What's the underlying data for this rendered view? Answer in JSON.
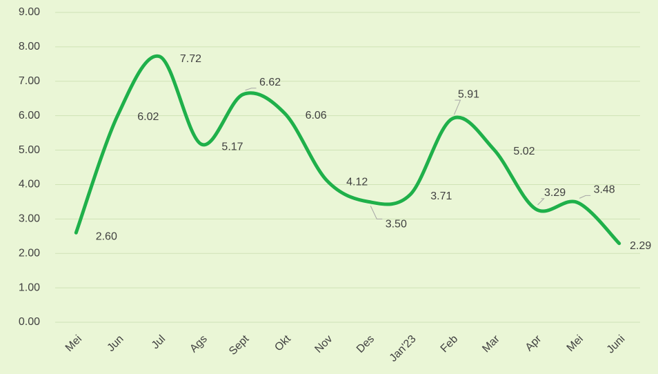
{
  "chart_data": {
    "type": "line",
    "categories": [
      "Mei",
      "Jun",
      "Jul",
      "Ags",
      "Sept",
      "Okt",
      "Nov",
      "Des",
      "Jan'23",
      "Feb",
      "Mar",
      "Apr",
      "Mei",
      "Juni"
    ],
    "values": [
      2.6,
      6.02,
      7.72,
      5.17,
      6.62,
      6.06,
      4.12,
      3.5,
      3.71,
      5.91,
      5.02,
      3.29,
      3.48,
      2.29
    ],
    "value_labels": [
      "2.60",
      "6.02",
      "7.72",
      "5.17",
      "6.62",
      "6.06",
      "4.12",
      "3.50",
      "3.71",
      "5.91",
      "5.02",
      "3.29",
      "3.48",
      "2.29"
    ],
    "color": "#1fb04a",
    "smooth": true,
    "grid": true,
    "ylim": [
      0,
      9
    ],
    "yticks": [
      {
        "value": 0,
        "label": "0.00"
      },
      {
        "value": 1,
        "label": "1.00"
      },
      {
        "value": 2,
        "label": "2.00"
      },
      {
        "value": 3,
        "label": "3.00"
      },
      {
        "value": 4,
        "label": "4.00"
      },
      {
        "value": 5,
        "label": "5.00"
      },
      {
        "value": 6,
        "label": "6.00"
      },
      {
        "value": 7,
        "label": "7.00"
      },
      {
        "value": 8,
        "label": "8.00"
      },
      {
        "value": 9,
        "label": "9.00"
      }
    ]
  }
}
